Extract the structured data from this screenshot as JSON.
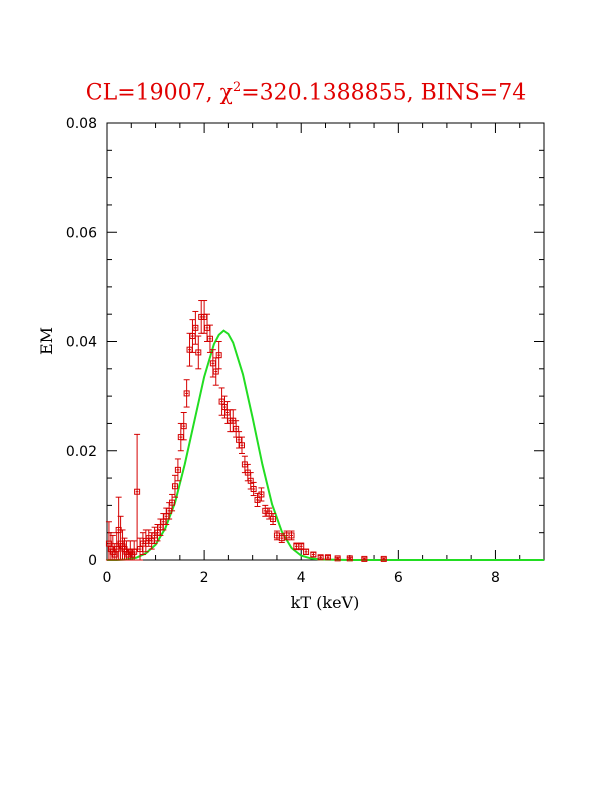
{
  "title": {
    "prefix": "CL=19007, ",
    "chi": "χ",
    "sup": "2",
    "suffix": "=320.1388855, BINS=74"
  },
  "colors": {
    "data": "#d40000",
    "model": "#22dd22",
    "axes": "#000000",
    "title": "#e00000"
  },
  "chart_data": {
    "type": "scatter",
    "xlabel": "kT (keV)",
    "ylabel": "EM",
    "xlim": [
      0,
      9
    ],
    "ylim": [
      0,
      0.08
    ],
    "x_ticks": [
      0,
      2,
      4,
      6,
      8
    ],
    "x_tick_labels": [
      "0",
      "2",
      "4",
      "6",
      "8"
    ],
    "y_ticks": [
      0,
      0.02,
      0.04,
      0.06,
      0.08
    ],
    "y_tick_labels": [
      "0",
      "0.02",
      "0.04",
      "0.06",
      "0.08"
    ],
    "grid": false,
    "series": [
      {
        "kind": "points_with_errorbars",
        "x": [
          0.04,
          0.08,
          0.12,
          0.16,
          0.2,
          0.24,
          0.28,
          0.32,
          0.36,
          0.4,
          0.44,
          0.48,
          0.52,
          0.56,
          0.62,
          0.68,
          0.74,
          0.8,
          0.86,
          0.92,
          0.98,
          1.04,
          1.1,
          1.16,
          1.22,
          1.28,
          1.34,
          1.4,
          1.46,
          1.52,
          1.58,
          1.64,
          1.7,
          1.76,
          1.82,
          1.88,
          1.94,
          2.0,
          2.06,
          2.12,
          2.18,
          2.24,
          2.3,
          2.36,
          2.42,
          2.48,
          2.54,
          2.6,
          2.66,
          2.72,
          2.78,
          2.84,
          2.9,
          2.96,
          3.02,
          3.1,
          3.18,
          3.26,
          3.34,
          3.42,
          3.5,
          3.6,
          3.7,
          3.8,
          3.9,
          4.0,
          4.1,
          4.25,
          4.4,
          4.55,
          4.75,
          5.0,
          5.3,
          5.7
        ],
        "y": [
          0.003,
          0.002,
          0.0015,
          0.001,
          0.002,
          0.0055,
          0.003,
          0.0025,
          0.002,
          0.0015,
          0.001,
          0.0015,
          0.001,
          0.0015,
          0.0125,
          0.002,
          0.003,
          0.0035,
          0.004,
          0.0035,
          0.0045,
          0.005,
          0.006,
          0.007,
          0.008,
          0.009,
          0.0105,
          0.0135,
          0.0165,
          0.0225,
          0.0245,
          0.0305,
          0.0385,
          0.041,
          0.0425,
          0.038,
          0.0445,
          0.0445,
          0.0425,
          0.0405,
          0.036,
          0.0345,
          0.0375,
          0.029,
          0.028,
          0.027,
          0.0255,
          0.0255,
          0.024,
          0.022,
          0.021,
          0.0175,
          0.016,
          0.0145,
          0.013,
          0.011,
          0.012,
          0.009,
          0.0085,
          0.0075,
          0.0045,
          0.004,
          0.0045,
          0.0045,
          0.0025,
          0.0025,
          0.0015,
          0.001,
          0.0005,
          0.0005,
          0.0003,
          0.0003,
          0.0002,
          0.0002
        ],
        "yerr": [
          0.004,
          0.003,
          0.003,
          0.002,
          0.003,
          0.006,
          0.005,
          0.003,
          0.002,
          0.002,
          0.001,
          0.002,
          0.001,
          0.002,
          0.0105,
          0.002,
          0.002,
          0.002,
          0.0015,
          0.0015,
          0.0015,
          0.0015,
          0.0015,
          0.0015,
          0.0015,
          0.0015,
          0.0015,
          0.002,
          0.002,
          0.0025,
          0.0025,
          0.0025,
          0.003,
          0.003,
          0.003,
          0.003,
          0.003,
          0.003,
          0.0025,
          0.0025,
          0.0025,
          0.0025,
          0.0025,
          0.0025,
          0.002,
          0.002,
          0.002,
          0.002,
          0.0015,
          0.0015,
          0.0015,
          0.0015,
          0.0015,
          0.0015,
          0.0012,
          0.0012,
          0.0012,
          0.001,
          0.001,
          0.001,
          0.0008,
          0.0008,
          0.0008,
          0.0008,
          0.0006,
          0.0006,
          0.0005,
          0.0004,
          0.0003,
          0.0003,
          0.0002,
          0.0002,
          0.0002,
          0.0002
        ],
        "xerr": 0.03
      },
      {
        "kind": "line",
        "x": [
          0.0,
          0.2,
          0.4,
          0.6,
          0.8,
          1.0,
          1.2,
          1.4,
          1.6,
          1.8,
          2.0,
          2.2,
          2.3,
          2.4,
          2.5,
          2.6,
          2.8,
          3.0,
          3.2,
          3.4,
          3.6,
          3.8,
          4.0,
          4.2,
          4.4,
          5.0,
          6.0,
          9.0
        ],
        "y": [
          0,
          0,
          0.0001,
          0.0004,
          0.0012,
          0.0028,
          0.0058,
          0.0105,
          0.0175,
          0.0255,
          0.0335,
          0.0395,
          0.0412,
          0.042,
          0.0414,
          0.0398,
          0.034,
          0.026,
          0.0175,
          0.0102,
          0.0052,
          0.0022,
          0.0008,
          0.0003,
          0.0001,
          0,
          0,
          0
        ]
      }
    ]
  }
}
